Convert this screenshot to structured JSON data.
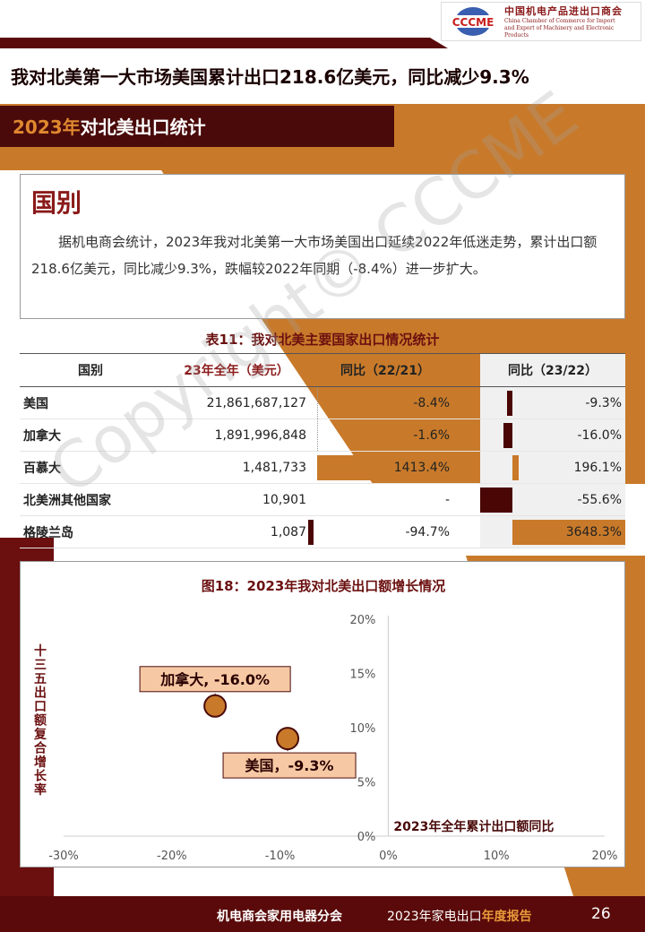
{
  "logo": {
    "badge_text": "CCCME",
    "name_cn": "中国机电产品进出口商会",
    "name_en_1": "China Chamber of Commerce for Import",
    "name_en_2": "and Export of Machinery and Electronic Products"
  },
  "headline": "我对北美第一大市场美国累计出口218.6亿美元，同比减少9.3%",
  "section": {
    "year": "2023年",
    "title": "对北美出口统计"
  },
  "card": {
    "title": "国别",
    "body": "据机电商会统计，2023年我对北美第一大市场美国出口延续2022年低迷走势，累计出口额218.6亿美元，同比减少9.3%，跌幅较2022年同期（-8.4%）进一步扩大。"
  },
  "table": {
    "title": "表11：我对北美主要国家出口情况统计",
    "headers": [
      "国别",
      "23年全年（美元）",
      "同比（22/21）",
      "同比（23/22）"
    ],
    "rows": [
      {
        "country": "美国",
        "amount": "21,861,687,127",
        "yoy_22": "-8.4%",
        "yoy_23": "-9.3%",
        "yoy_22_val": -8.4,
        "yoy_23_val": -9.3
      },
      {
        "country": "加拿大",
        "amount": "1,891,996,848",
        "yoy_22": "-1.6%",
        "yoy_23": "-16.0%",
        "yoy_22_val": -1.6,
        "yoy_23_val": -16.0
      },
      {
        "country": "百慕大",
        "amount": "1,481,733",
        "yoy_22": "1413.4%",
        "yoy_23": "196.1%",
        "yoy_22_val": 1413.4,
        "yoy_23_val": 196.1
      },
      {
        "country": "北美洲其他国家",
        "amount": "10,901",
        "yoy_22": "-",
        "yoy_23": "-55.6%",
        "yoy_22_val": null,
        "yoy_23_val": -55.6
      },
      {
        "country": "格陵兰岛",
        "amount": "1,087",
        "yoy_22": "-94.7%",
        "yoy_23": "3648.3%",
        "yoy_22_val": -94.7,
        "yoy_23_val": 3648.3
      }
    ]
  },
  "chart_data": {
    "type": "scatter",
    "title": "图18：2023年我对北美出口额增长情况",
    "xlabel": "2023年全年累计出口额同比",
    "ylabel": "十三五出口额复合增长率",
    "xlim": [
      -30,
      20
    ],
    "ylim": [
      0,
      20
    ],
    "x_ticks": [
      "-30%",
      "-20%",
      "-10%",
      "0%",
      "10%",
      "20%"
    ],
    "y_ticks": [
      "0%",
      "5%",
      "10%",
      "15%",
      "20%"
    ],
    "points": [
      {
        "label": "加拿大, -16.0%",
        "x": -16.0,
        "y": 12
      },
      {
        "label": "美国，-9.3%",
        "x": -9.3,
        "y": 9
      }
    ]
  },
  "footer": {
    "org": "机电商会家用电器分会",
    "report_prefix": "2023年家电出口",
    "report_suffix": "年度报告",
    "page": "26"
  },
  "watermark": "Copyright© CCCME",
  "colors": {
    "dark": "#4a0a0a",
    "accent": "#c87a2a",
    "red": "#8b1a1a"
  }
}
